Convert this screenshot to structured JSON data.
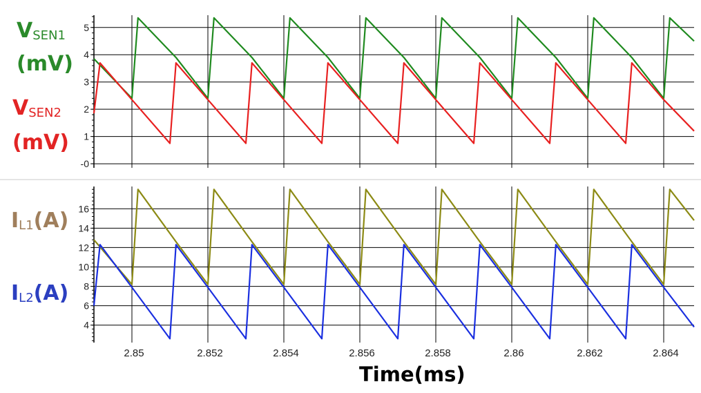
{
  "labels": {
    "vsen1": {
      "main": "V",
      "sub": "SEN1",
      "unit": "(mV)",
      "color": "#2a8a2a"
    },
    "vsen2": {
      "main": "V",
      "sub": "SEN2",
      "unit": "(mV)",
      "color": "#e22424"
    },
    "il1": {
      "main": "I",
      "sub": "L1",
      "tail": "(A)",
      "color": "#a07f5c"
    },
    "il2": {
      "main": "I",
      "sub": "L2",
      "tail": "(A)",
      "color": "#2b3fc0"
    }
  },
  "chart_data": [
    {
      "type": "line",
      "title": "",
      "xlabel": "Time(ms)",
      "ylabel": "VSEN (mV)",
      "xlim": [
        2.849,
        2.8648
      ],
      "ylim": [
        -0.15,
        5.45
      ],
      "yticks": [
        0,
        1,
        2,
        3,
        4,
        5
      ],
      "ytick_labels": [
        "-0",
        "1",
        "2",
        "3",
        "4",
        "5"
      ],
      "xticks": [
        2.85,
        2.852,
        2.854,
        2.856,
        2.858,
        2.86,
        2.862,
        2.864
      ],
      "grid": true,
      "series": [
        {
          "name": "VSEN1",
          "color": "#1f8a1f",
          "x": [
            2.849,
            2.85,
            2.85016,
            2.85116,
            2.852,
            2.85216,
            2.85316,
            2.854,
            2.85416,
            2.85516,
            2.856,
            2.85616,
            2.85716,
            2.858,
            2.85816,
            2.85916,
            2.86,
            2.86016,
            2.86116,
            2.862,
            2.86216,
            2.86316,
            2.864,
            2.86416,
            2.8648
          ],
          "y": [
            3.85,
            2.4,
            5.35,
            3.9,
            2.4,
            5.35,
            3.9,
            2.4,
            5.35,
            3.9,
            2.4,
            5.35,
            3.9,
            2.4,
            5.35,
            3.9,
            2.4,
            5.35,
            3.9,
            2.4,
            5.35,
            3.9,
            2.4,
            5.35,
            4.5
          ]
        },
        {
          "name": "VSEN2",
          "color": "#e82020",
          "x": [
            2.849,
            2.84916,
            2.85,
            2.851,
            2.85116,
            2.852,
            2.853,
            2.85316,
            2.854,
            2.855,
            2.85516,
            2.856,
            2.857,
            2.85716,
            2.858,
            2.859,
            2.85916,
            2.86,
            2.861,
            2.86116,
            2.862,
            2.863,
            2.86316,
            2.864,
            2.8648
          ],
          "y": [
            1.85,
            3.7,
            2.35,
            0.75,
            3.7,
            2.35,
            0.75,
            3.7,
            2.35,
            0.75,
            3.7,
            2.35,
            0.75,
            3.7,
            2.35,
            0.75,
            3.7,
            2.35,
            0.75,
            3.7,
            2.35,
            0.75,
            3.7,
            2.35,
            1.2
          ]
        }
      ]
    },
    {
      "type": "line",
      "title": "",
      "xlabel": "Time(ms)",
      "ylabel": "IL (A)",
      "xlim": [
        2.849,
        2.8648
      ],
      "ylim": [
        2.2,
        18.3
      ],
      "yticks": [
        4,
        6,
        8,
        10,
        12,
        14,
        16
      ],
      "ytick_labels": [
        "4",
        "6",
        "8",
        "10",
        "12",
        "14",
        "16"
      ],
      "xticks": [
        2.85,
        2.852,
        2.854,
        2.856,
        2.858,
        2.86,
        2.862,
        2.864
      ],
      "xtick_labels": [
        "2.85",
        "2.852",
        "2.854",
        "2.856",
        "2.858",
        "2.86",
        "2.862",
        "2.864"
      ],
      "grid": true,
      "series": [
        {
          "name": "IL1",
          "color": "#8c8a14",
          "x": [
            2.849,
            2.85,
            2.85016,
            2.85116,
            2.852,
            2.85216,
            2.85316,
            2.854,
            2.85416,
            2.85516,
            2.856,
            2.85616,
            2.85716,
            2.858,
            2.85816,
            2.85916,
            2.86,
            2.86016,
            2.86116,
            2.862,
            2.86216,
            2.86316,
            2.864,
            2.86416,
            2.8648
          ],
          "y": [
            12.8,
            8.2,
            18.0,
            12.6,
            8.2,
            18.0,
            12.6,
            8.2,
            18.0,
            12.6,
            8.2,
            18.0,
            12.6,
            8.2,
            18.0,
            12.6,
            8.2,
            18.0,
            12.6,
            8.2,
            18.0,
            12.6,
            8.2,
            18.0,
            14.8
          ]
        },
        {
          "name": "IL2",
          "color": "#1a2fe0",
          "x": [
            2.849,
            2.84916,
            2.85,
            2.851,
            2.85116,
            2.852,
            2.853,
            2.85316,
            2.854,
            2.855,
            2.85516,
            2.856,
            2.857,
            2.85716,
            2.858,
            2.859,
            2.85916,
            2.86,
            2.861,
            2.86116,
            2.862,
            2.863,
            2.86316,
            2.864,
            2.8648
          ],
          "y": [
            6.0,
            12.3,
            7.9,
            2.6,
            12.3,
            7.9,
            2.6,
            12.3,
            7.9,
            2.6,
            12.3,
            7.9,
            2.6,
            12.3,
            7.9,
            2.6,
            12.3,
            7.9,
            2.6,
            12.3,
            7.9,
            2.6,
            12.3,
            7.9,
            3.8
          ]
        }
      ]
    }
  ]
}
